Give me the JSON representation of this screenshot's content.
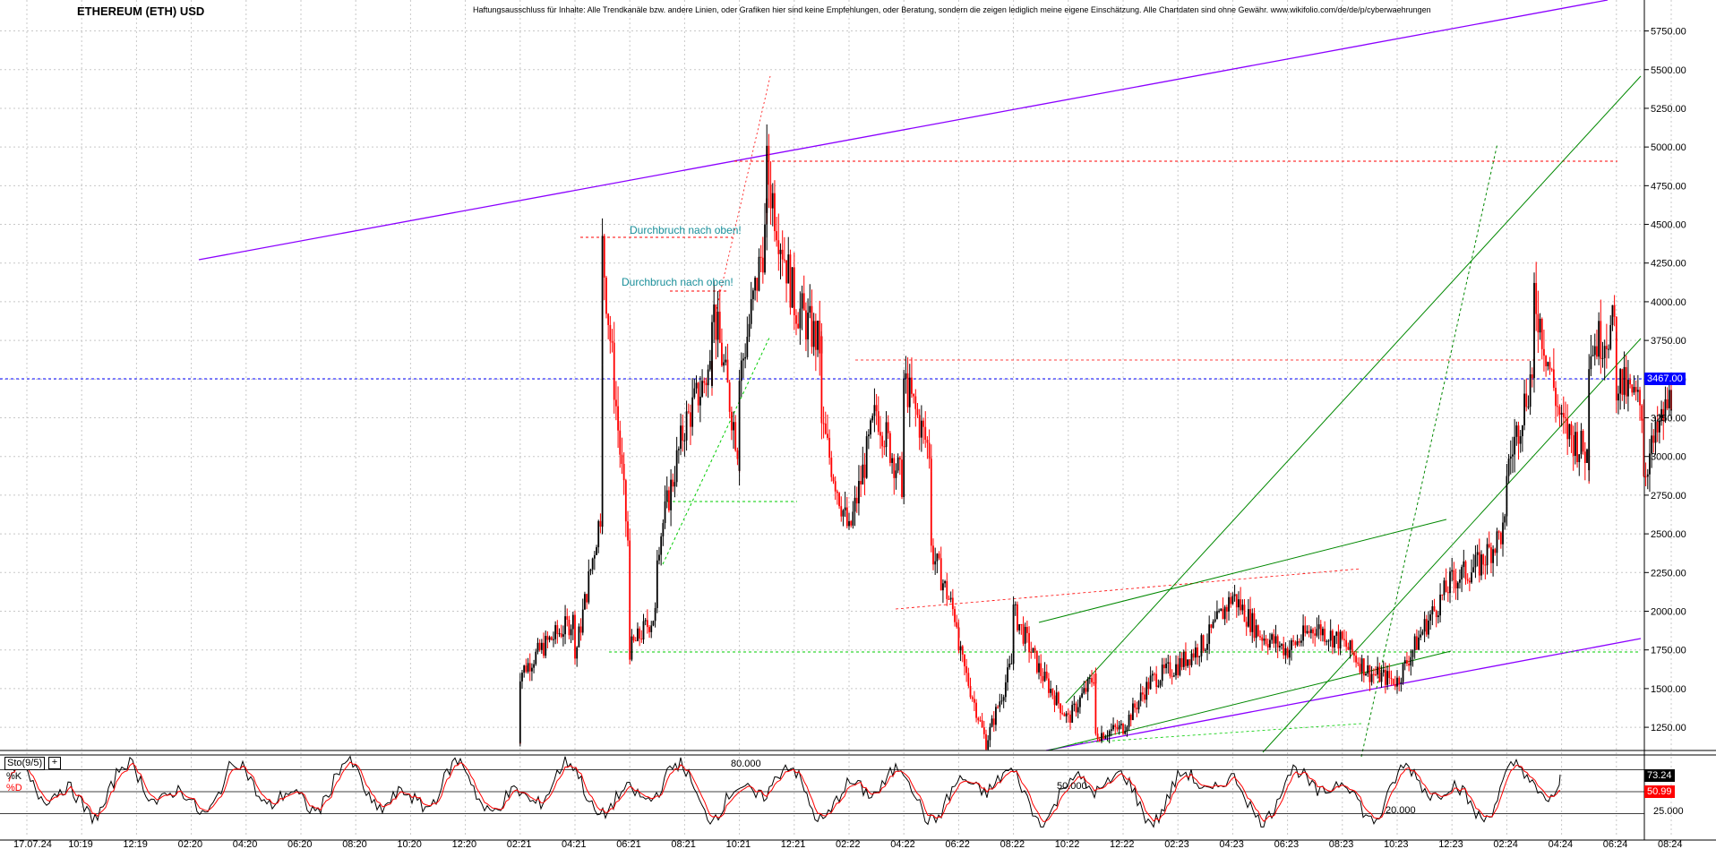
{
  "title": "ETHEREUM (ETH) USD",
  "disclaimer": "Haftungsausschluss für Inhalte: Alle Trendkanäle bzw. andere Linien, oder Grafiken hier sind keine Empfehlungen, oder Beratung, sondern die zeigen lediglich meine eigene Einschätzung. Alle Chartdaten sind ohne Gewähr. www.wikifolio.com/de/de/p/cyberwaehrungen",
  "annotations": [
    "Durchbruch nach oben!",
    "Durchbruch nach oben!"
  ],
  "current_price_label": "3467.00",
  "colors": {
    "bull": "#000000",
    "bear": "#ff0000",
    "price_line": "#0000ff",
    "channel_purple": "#8b00ff",
    "trend_green": "#008800",
    "resistance_red": "#ff0000"
  },
  "stochastic": {
    "name": "Sto(9/5)",
    "k_label": "%K",
    "d_label": "%D",
    "k_value": "73.24",
    "d_value": "50.99",
    "levels": [
      "80.000",
      "50.000",
      "20.000"
    ],
    "right_level": "25.000"
  },
  "chart_data": {
    "type": "candlestick",
    "title": "ETHEREUM (ETH) USD",
    "y_ticks": [
      "5750.00",
      "5500.00",
      "5250.00",
      "5000.00",
      "4750.00",
      "4500.00",
      "4250.00",
      "4000.00",
      "3750.00",
      "3500.00",
      "3250.00",
      "3000.00",
      "2750.00",
      "2500.00",
      "2250.00",
      "2000.00",
      "1750.00",
      "1500.00",
      "1250.00"
    ],
    "x_ticks": [
      "17.07.24",
      "10:19",
      "12:19",
      "02:20",
      "04:20",
      "06:20",
      "08:20",
      "10:20",
      "12:20",
      "02:21",
      "04:21",
      "06:21",
      "08:21",
      "10:21",
      "12:21",
      "02:22",
      "04:22",
      "06:22",
      "08:22",
      "10:22",
      "12:22",
      "02:23",
      "04:23",
      "06:23",
      "08:23",
      "10:23",
      "12:23",
      "02:24",
      "04:24",
      "06:24",
      "08:24"
    ],
    "ylim": [
      1100,
      5950
    ],
    "last_close": 3467,
    "price_path": [
      [
        "02:21",
        1150
      ],
      [
        "02:21",
        1600
      ],
      [
        "03:21",
        1800
      ],
      [
        "04:21",
        1950
      ],
      [
        "04:21",
        1700
      ],
      [
        "05:21",
        2700
      ],
      [
        "05:21",
        4350
      ],
      [
        "06:21",
        2300
      ],
      [
        "06:21",
        1750
      ],
      [
        "07:21",
        2000
      ],
      [
        "07:21",
        2400
      ],
      [
        "08:21",
        3200
      ],
      [
        "09:21",
        3600
      ],
      [
        "09:21",
        4000
      ],
      [
        "10:21",
        3000
      ],
      [
        "10:21",
        3500
      ],
      [
        "11:21",
        4500
      ],
      [
        "11:21",
        4850
      ],
      [
        "12:21",
        4000
      ],
      [
        "01:22",
        3700
      ],
      [
        "01:22",
        3200
      ],
      [
        "02:22",
        2500
      ],
      [
        "03:22",
        3300
      ],
      [
        "04:22",
        2800
      ],
      [
        "04:22",
        3500
      ],
      [
        "05:22",
        3000
      ],
      [
        "05:22",
        2400
      ],
      [
        "06:22",
        1900
      ],
      [
        "06:22",
        1750
      ],
      [
        "07:22",
        1150
      ],
      [
        "08:22",
        1700
      ],
      [
        "08:22",
        2000
      ],
      [
        "09:22",
        1600
      ],
      [
        "10:22",
        1300
      ],
      [
        "11:22",
        1600
      ],
      [
        "11:22",
        1200
      ],
      [
        "12:22",
        1250
      ],
      [
        "01:23",
        1550
      ],
      [
        "02:23",
        1650
      ],
      [
        "03:23",
        1800
      ],
      [
        "04:23",
        2100
      ],
      [
        "05:23",
        1850
      ],
      [
        "06:23",
        1750
      ],
      [
        "07:23",
        1900
      ],
      [
        "08:23",
        1800
      ],
      [
        "09:23",
        1600
      ],
      [
        "10:23",
        1550
      ],
      [
        "11:23",
        1900
      ],
      [
        "12:23",
        2200
      ],
      [
        "01:24",
        2300
      ],
      [
        "02:24",
        2550
      ],
      [
        "02:24",
        2900
      ],
      [
        "03:24",
        3600
      ],
      [
        "03:24",
        4050
      ],
      [
        "04:24",
        3200
      ],
      [
        "05:24",
        3000
      ],
      [
        "05:24",
        3700
      ],
      [
        "06:24",
        3850
      ],
      [
        "06:24",
        3500
      ],
      [
        "07:24",
        3300
      ],
      [
        "07:24",
        2900
      ],
      [
        "08:24",
        3400
      ],
      [
        "08:24",
        3467
      ]
    ],
    "stochastic_k_last": 73.24,
    "stochastic_d_last": 50.99
  }
}
